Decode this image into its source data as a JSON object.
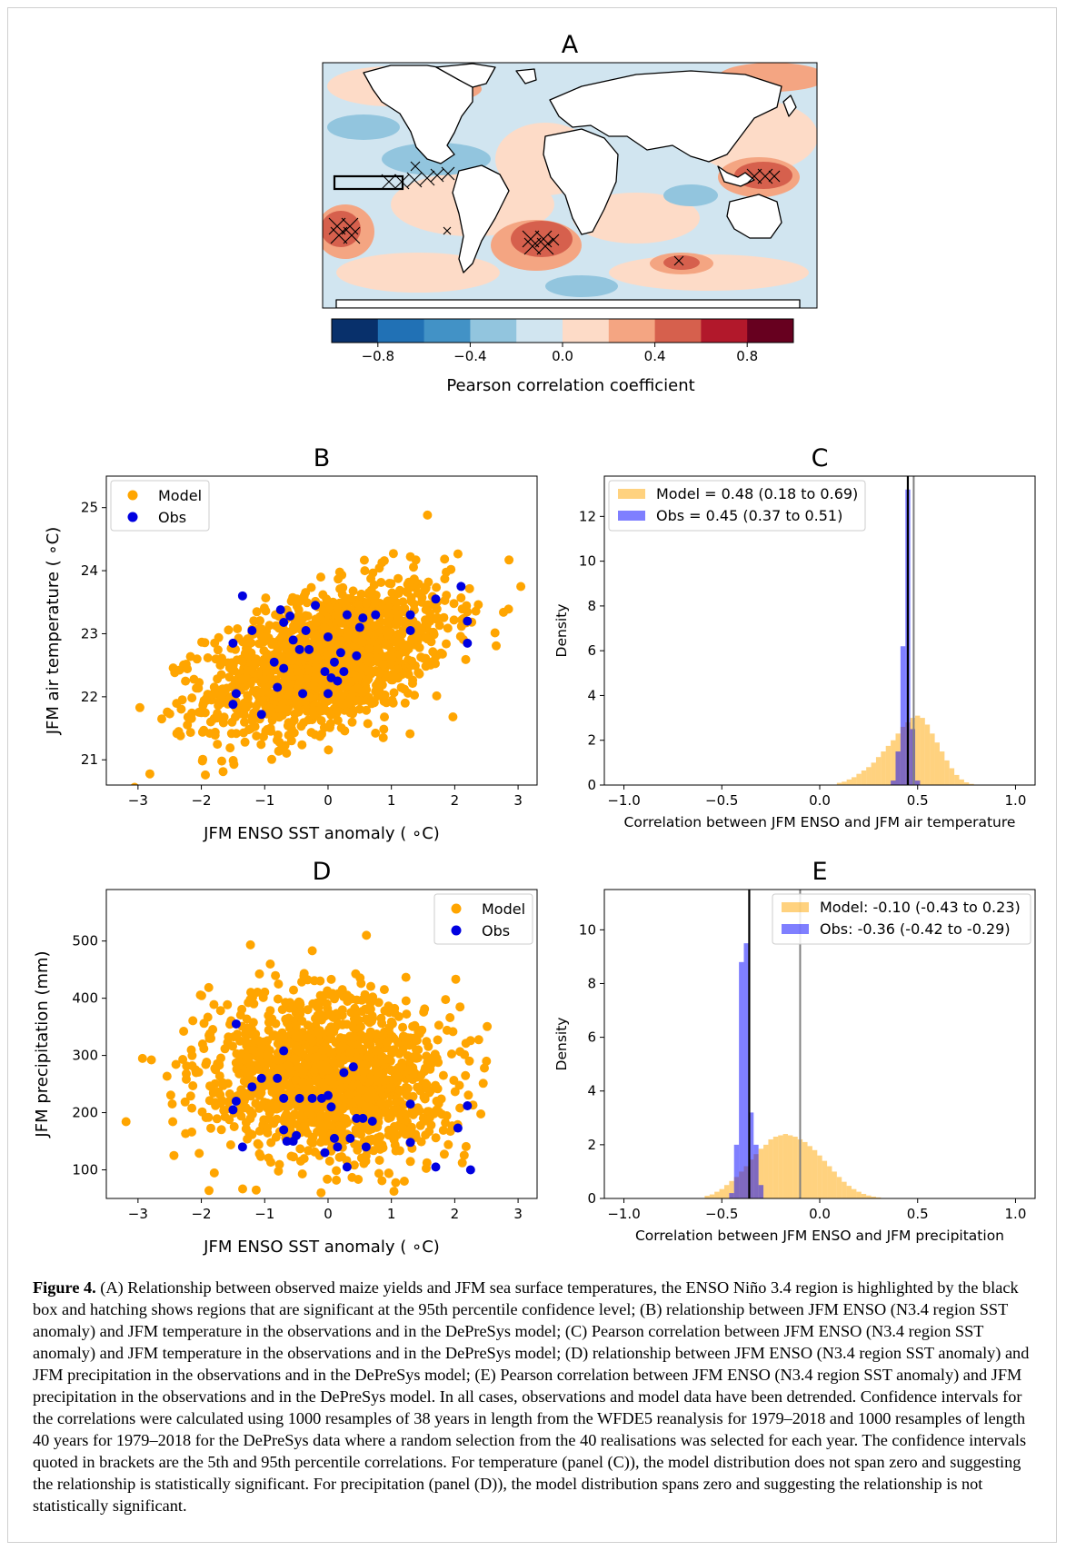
{
  "panel_a": {
    "title": "A",
    "colorbar_label": "Pearson correlation coefficient",
    "colorbar_ticks": [
      "−0.8",
      "−0.4",
      "0.0",
      "0.4",
      "0.8"
    ],
    "colors": [
      "#08306b",
      "#2171b5",
      "#4292c6",
      "#92c5de",
      "#d1e5f0",
      "#fddbc7",
      "#f4a582",
      "#d6604d",
      "#b2182b",
      "#67001f"
    ]
  },
  "chart_data": [
    {
      "panel": "B",
      "type": "scatter",
      "title": "B",
      "xlabel": "JFM ENSO SST anomaly ( ∘C)",
      "ylabel": "JFM air temperature ( ∘C)",
      "xlim": [
        -3.5,
        3.3
      ],
      "ylim": [
        20.6,
        25.5
      ],
      "xticks": [
        "−3",
        "−2",
        "−1",
        "0",
        "1",
        "2",
        "3"
      ],
      "yticks": [
        "21",
        "22",
        "23",
        "24",
        "25"
      ],
      "legend": {
        "placement": "top-left",
        "entries": [
          "Model",
          "Obs"
        ]
      },
      "colors": {
        "model": "#ffa500",
        "obs": "#0000e0"
      },
      "model_cloud": {
        "n_points": 1520,
        "x_mean": 0.0,
        "x_sd": 0.95,
        "y_mean": 22.6,
        "y_sd": 0.6,
        "corr": 0.48
      },
      "obs": [
        [
          -1.5,
          22.85
        ],
        [
          -1.45,
          22.05
        ],
        [
          -1.5,
          21.88
        ],
        [
          -1.35,
          23.6
        ],
        [
          -1.2,
          23.05
        ],
        [
          -1.05,
          21.72
        ],
        [
          -0.75,
          23.38
        ],
        [
          -0.7,
          23.18
        ],
        [
          -0.6,
          23.28
        ],
        [
          -0.85,
          22.55
        ],
        [
          -0.7,
          22.45
        ],
        [
          -0.55,
          22.9
        ],
        [
          -0.8,
          22.15
        ],
        [
          -0.45,
          22.75
        ],
        [
          -0.35,
          23.05
        ],
        [
          -0.3,
          22.75
        ],
        [
          -0.4,
          22.05
        ],
        [
          -0.2,
          23.45
        ],
        [
          0.0,
          22.95
        ],
        [
          -0.05,
          22.4
        ],
        [
          0.05,
          22.3
        ],
        [
          0.1,
          22.55
        ],
        [
          0.15,
          22.25
        ],
        [
          0.25,
          22.4
        ],
        [
          0.2,
          22.7
        ],
        [
          0.3,
          23.3
        ],
        [
          0.5,
          23.1
        ],
        [
          0.0,
          22.05
        ],
        [
          0.45,
          22.65
        ],
        [
          0.55,
          23.25
        ],
        [
          0.75,
          23.3
        ],
        [
          1.3,
          23.3
        ],
        [
          1.3,
          23.05
        ],
        [
          1.7,
          23.55
        ],
        [
          2.1,
          23.75
        ],
        [
          2.2,
          23.2
        ],
        [
          2.2,
          22.85
        ]
      ]
    },
    {
      "panel": "C",
      "type": "bar",
      "title": "C",
      "xlabel": "Correlation between JFM ENSO and JFM air temperature",
      "ylabel": "Density",
      "xlim": [
        -1.1,
        1.1
      ],
      "ylim": [
        0,
        13.8
      ],
      "xticks": [
        "−1.0",
        "−0.5",
        "0.0",
        "0.5",
        "1.0"
      ],
      "yticks": [
        "0",
        "2",
        "4",
        "6",
        "8",
        "10",
        "12"
      ],
      "legend": {
        "placement": "top-left",
        "entries": [
          "Model = 0.48 (0.18 to 0.69)",
          "Obs = 0.45 (0.37 to 0.51)"
        ]
      },
      "colors": {
        "model": "#ffa500",
        "obs": "#0000ff"
      },
      "vlines": {
        "obs": 0.45,
        "model": 0.48
      },
      "bin_width": 0.025,
      "model_hist": [
        [
          0.1,
          0.1
        ],
        [
          0.125,
          0.15
        ],
        [
          0.15,
          0.25
        ],
        [
          0.175,
          0.35
        ],
        [
          0.2,
          0.5
        ],
        [
          0.225,
          0.65
        ],
        [
          0.25,
          0.8
        ],
        [
          0.275,
          1.0
        ],
        [
          0.3,
          1.25
        ],
        [
          0.325,
          1.5
        ],
        [
          0.35,
          1.75
        ],
        [
          0.375,
          2.0
        ],
        [
          0.4,
          2.3
        ],
        [
          0.425,
          2.6
        ],
        [
          0.45,
          2.8
        ],
        [
          0.475,
          3.0
        ],
        [
          0.5,
          3.1
        ],
        [
          0.525,
          3.0
        ],
        [
          0.55,
          2.7
        ],
        [
          0.575,
          2.3
        ],
        [
          0.6,
          1.9
        ],
        [
          0.625,
          1.5
        ],
        [
          0.65,
          1.1
        ],
        [
          0.675,
          0.75
        ],
        [
          0.7,
          0.45
        ],
        [
          0.725,
          0.25
        ],
        [
          0.75,
          0.12
        ],
        [
          0.775,
          0.05
        ]
      ],
      "obs_hist": [
        [
          0.375,
          0.2
        ],
        [
          0.4,
          1.5
        ],
        [
          0.425,
          6.2
        ],
        [
          0.45,
          13.2
        ],
        [
          0.475,
          2.5
        ],
        [
          0.5,
          0.2
        ]
      ]
    },
    {
      "panel": "D",
      "type": "scatter",
      "title": "D",
      "xlabel": "JFM ENSO SST anomaly ( ∘C)",
      "ylabel": "JFM precipitation (mm)",
      "xlim": [
        -3.5,
        3.3
      ],
      "ylim": [
        50,
        590
      ],
      "xticks": [
        "−3",
        "−2",
        "−1",
        "0",
        "1",
        "2",
        "3"
      ],
      "yticks": [
        "100",
        "200",
        "300",
        "400",
        "500"
      ],
      "legend": {
        "placement": "top-right",
        "entries": [
          "Model",
          "Obs"
        ]
      },
      "colors": {
        "model": "#ffa500",
        "obs": "#0000e0"
      },
      "model_cloud": {
        "n_points": 1520,
        "x_mean": 0.0,
        "x_sd": 0.95,
        "y_mean": 262,
        "y_sd": 72,
        "corr": -0.1
      },
      "obs": [
        [
          -1.5,
          205
        ],
        [
          -1.45,
          220
        ],
        [
          -1.45,
          355
        ],
        [
          -1.35,
          140
        ],
        [
          -1.2,
          245
        ],
        [
          -1.05,
          260
        ],
        [
          -0.8,
          260
        ],
        [
          -0.7,
          225
        ],
        [
          -0.7,
          170
        ],
        [
          -0.65,
          150
        ],
        [
          -0.5,
          160
        ],
        [
          -0.55,
          150
        ],
        [
          -0.7,
          308
        ],
        [
          -0.45,
          225
        ],
        [
          -0.25,
          225
        ],
        [
          -0.1,
          225
        ],
        [
          -0.05,
          130
        ],
        [
          0.0,
          230
        ],
        [
          0.05,
          210
        ],
        [
          0.1,
          155
        ],
        [
          0.15,
          140
        ],
        [
          0.25,
          270
        ],
        [
          0.3,
          105
        ],
        [
          0.35,
          155
        ],
        [
          0.4,
          280
        ],
        [
          0.45,
          190
        ],
        [
          0.55,
          190
        ],
        [
          0.6,
          140
        ],
        [
          0.7,
          185
        ],
        [
          1.3,
          215
        ],
        [
          1.3,
          148
        ],
        [
          1.7,
          105
        ],
        [
          2.05,
          173
        ],
        [
          2.2,
          212
        ],
        [
          2.25,
          100
        ]
      ]
    },
    {
      "panel": "E",
      "type": "bar",
      "title": "E",
      "xlabel": "Correlation between JFM ENSO and JFM precipitation",
      "ylabel": "Density",
      "xlim": [
        -1.1,
        1.1
      ],
      "ylim": [
        0,
        11.5
      ],
      "xticks": [
        "−1.0",
        "−0.5",
        "0.0",
        "0.5",
        "1.0"
      ],
      "yticks": [
        "0",
        "2",
        "4",
        "6",
        "8",
        "10"
      ],
      "legend": {
        "placement": "top-right",
        "entries": [
          "Model: -0.10 (-0.43 to 0.23)",
          "Obs: -0.36 (-0.42 to -0.29)"
        ]
      },
      "colors": {
        "model": "#ffa500",
        "obs": "#0000ff"
      },
      "vlines": {
        "obs": -0.36,
        "model": -0.1
      },
      "bin_width": 0.025,
      "model_hist": [
        [
          -0.575,
          0.1
        ],
        [
          -0.55,
          0.15
        ],
        [
          -0.525,
          0.25
        ],
        [
          -0.5,
          0.35
        ],
        [
          -0.475,
          0.5
        ],
        [
          -0.45,
          0.65
        ],
        [
          -0.425,
          0.8
        ],
        [
          -0.4,
          1.0
        ],
        [
          -0.375,
          1.2
        ],
        [
          -0.35,
          1.45
        ],
        [
          -0.325,
          1.65
        ],
        [
          -0.3,
          1.85
        ],
        [
          -0.275,
          2.0
        ],
        [
          -0.25,
          2.2
        ],
        [
          -0.225,
          2.3
        ],
        [
          -0.2,
          2.35
        ],
        [
          -0.175,
          2.4
        ],
        [
          -0.15,
          2.35
        ],
        [
          -0.125,
          2.3
        ],
        [
          -0.1,
          2.2
        ],
        [
          -0.075,
          2.1
        ],
        [
          -0.05,
          1.95
        ],
        [
          -0.025,
          1.8
        ],
        [
          0.0,
          1.6
        ],
        [
          0.025,
          1.4
        ],
        [
          0.05,
          1.2
        ],
        [
          0.075,
          1.0
        ],
        [
          0.1,
          0.8
        ],
        [
          0.125,
          0.62
        ],
        [
          0.15,
          0.47
        ],
        [
          0.175,
          0.35
        ],
        [
          0.2,
          0.25
        ],
        [
          0.225,
          0.17
        ],
        [
          0.25,
          0.11
        ],
        [
          0.275,
          0.07
        ],
        [
          0.3,
          0.04
        ]
      ],
      "obs_hist": [
        [
          -0.45,
          0.2
        ],
        [
          -0.425,
          2.0
        ],
        [
          -0.4,
          8.8
        ],
        [
          -0.375,
          9.5
        ],
        [
          -0.35,
          3.2
        ],
        [
          -0.325,
          2.0
        ],
        [
          -0.3,
          0.5
        ]
      ]
    }
  ],
  "caption": {
    "label": "Figure 4.",
    "text": " (A) Relationship between observed maize yields and JFM sea surface temperatures, the ENSO Niño 3.4 region is highlighted by the black box and hatching shows regions that are significant at the 95th percentile confidence level; (B) relationship between JFM ENSO (N3.4 region SST anomaly) and JFM temperature in the observations and in the DePreSys model; (C) Pearson correlation between JFM ENSO (N3.4 region SST anomaly) and JFM temperature in the observations and in the DePreSys model; (D) relationship between JFM ENSO (N3.4 region SST anomaly) and JFM precipitation in the observations and in the DePreSys model; (E) Pearson correlation between JFM ENSO (N3.4 region SST anomaly) and JFM precipitation in the observations and in the DePreSys model. In all cases, observations and model data have been detrended. Confidence intervals for the correlations were calculated using 1000 resamples of 38 years in length from the WFDE5 reanalysis for 1979–2018 and 1000 resamples of length 40 years for 1979–2018 for the DePreSys data where a random selection from the 40 realisations was selected for each year. The confidence intervals quoted in brackets are the 5th and 95th percentile correlations. For temperature (panel (C)), the model distribution does not span zero and suggesting the relationship is statistically significant. For precipitation (panel (D)), the model distribution spans zero and suggesting the relationship is not statistically significant."
  }
}
